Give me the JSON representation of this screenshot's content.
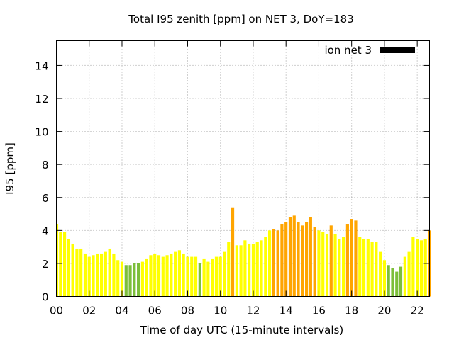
{
  "chart_data": {
    "type": "bar",
    "title": "Total I95 zenith [ppm] on NET 3, DoY=183",
    "xlabel": "Time of day UTC (15-minute intervals)",
    "ylabel": "I95 [ppm]",
    "xlim": [
      0,
      22.75
    ],
    "ylim": [
      0,
      15.5
    ],
    "x_ticks": [
      "00",
      "02",
      "04",
      "06",
      "08",
      "10",
      "12",
      "14",
      "16",
      "18",
      "20",
      "22"
    ],
    "y_ticks": [
      "0",
      "2",
      "4",
      "6",
      "8",
      "10",
      "12",
      "14"
    ],
    "grid": true,
    "legend": {
      "placement": "top-right",
      "entries": [
        {
          "label": "ion net 3",
          "color": "#000000"
        }
      ]
    },
    "bar_interval_hours": 0.25,
    "colors": {
      "yellow": "#ffff00",
      "orange": "#ffa500",
      "green": "#7cbe3a",
      "axis": "#000000",
      "grid": "#a0a0a0"
    },
    "values": [
      4.4,
      3.9,
      3.9,
      3.5,
      3.2,
      2.9,
      2.9,
      2.6,
      2.4,
      2.5,
      2.6,
      2.6,
      2.7,
      2.9,
      2.6,
      2.2,
      2.1,
      1.9,
      1.9,
      2.0,
      2.0,
      2.1,
      2.3,
      2.5,
      2.6,
      2.5,
      2.4,
      2.5,
      2.6,
      2.7,
      2.8,
      2.6,
      2.4,
      2.4,
      2.4,
      2.0,
      2.3,
      2.1,
      2.3,
      2.4,
      2.4,
      2.7,
      3.3,
      5.4,
      3.1,
      3.1,
      3.4,
      3.2,
      3.2,
      3.3,
      3.4,
      3.6,
      4.0,
      4.1,
      4.0,
      4.4,
      4.5,
      4.8,
      4.9,
      4.5,
      4.3,
      4.5,
      4.8,
      4.2,
      4.0,
      3.9,
      3.8,
      4.3,
      3.8,
      3.5,
      3.6,
      4.4,
      4.7,
      4.6,
      3.6,
      3.5,
      3.5,
      3.3,
      3.3,
      2.7,
      2.2,
      1.9,
      1.7,
      1.5,
      1.8,
      2.4,
      2.7,
      3.6,
      3.5,
      3.4,
      3.5,
      4.0
    ],
    "bar_colors": [
      "yellow",
      "yellow",
      "yellow",
      "yellow",
      "yellow",
      "yellow",
      "yellow",
      "yellow",
      "yellow",
      "yellow",
      "yellow",
      "yellow",
      "yellow",
      "yellow",
      "yellow",
      "yellow",
      "yellow",
      "green",
      "green",
      "green",
      "green",
      "yellow",
      "yellow",
      "yellow",
      "yellow",
      "yellow",
      "yellow",
      "yellow",
      "yellow",
      "yellow",
      "yellow",
      "yellow",
      "yellow",
      "yellow",
      "yellow",
      "green",
      "yellow",
      "yellow",
      "yellow",
      "yellow",
      "yellow",
      "yellow",
      "yellow",
      "orange",
      "yellow",
      "yellow",
      "yellow",
      "yellow",
      "yellow",
      "yellow",
      "yellow",
      "yellow",
      "yellow",
      "orange",
      "orange",
      "orange",
      "orange",
      "orange",
      "orange",
      "orange",
      "orange",
      "orange",
      "orange",
      "orange",
      "yellow",
      "yellow",
      "yellow",
      "orange",
      "yellow",
      "yellow",
      "yellow",
      "orange",
      "orange",
      "orange",
      "yellow",
      "yellow",
      "yellow",
      "yellow",
      "yellow",
      "yellow",
      "yellow",
      "green",
      "green",
      "green",
      "green",
      "yellow",
      "yellow",
      "yellow",
      "yellow",
      "yellow",
      "yellow",
      "orange"
    ]
  }
}
